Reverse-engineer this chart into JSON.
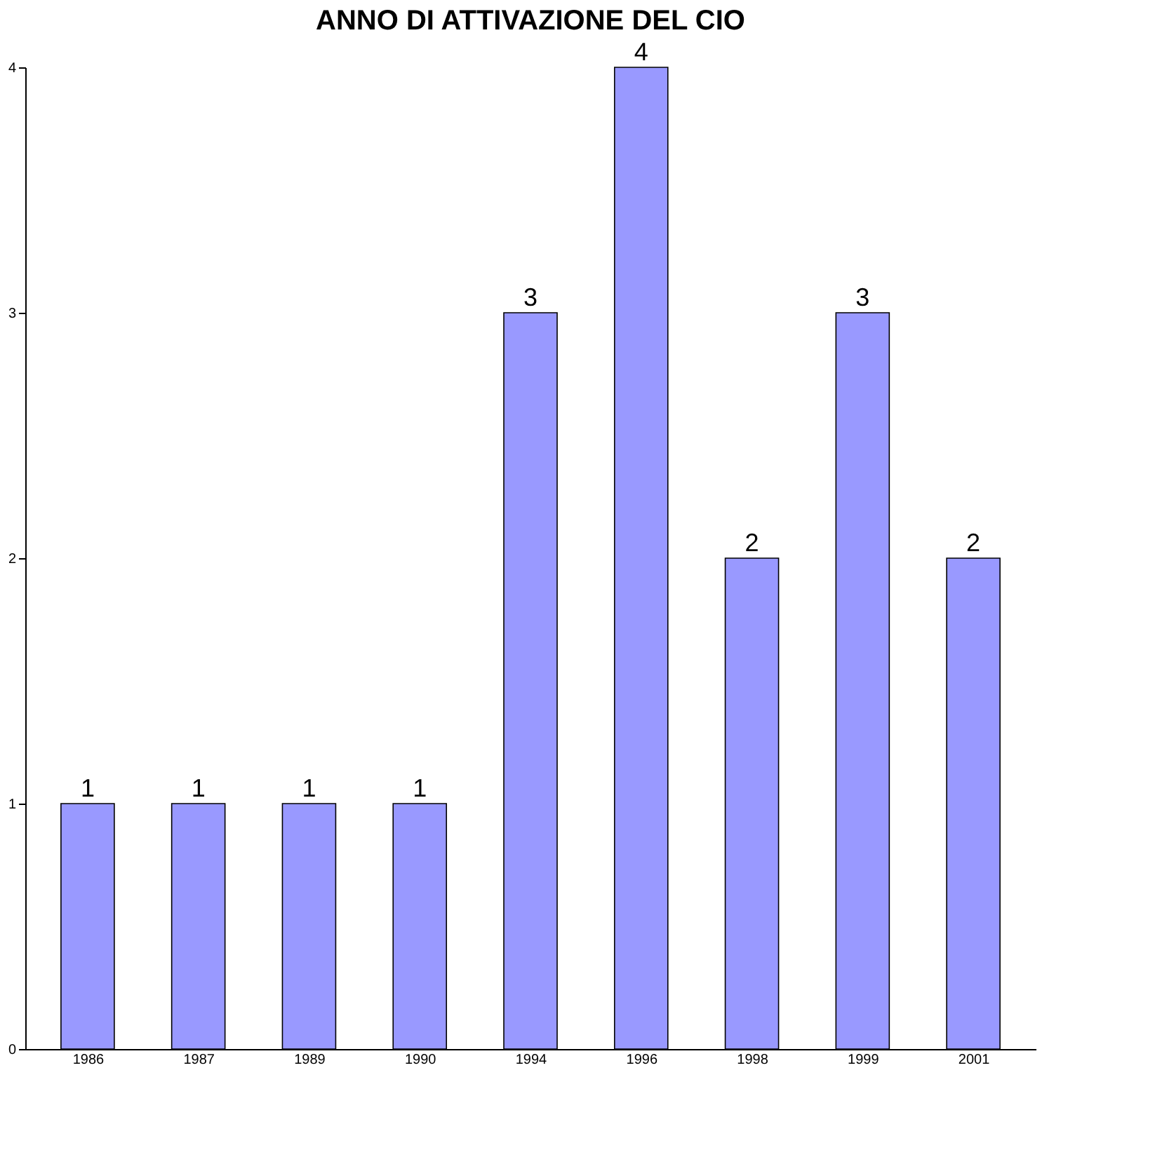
{
  "chart_data": {
    "type": "bar",
    "title": "ANNO DI ATTIVAZIONE DEL CIO",
    "categories": [
      "1986",
      "1987",
      "1989",
      "1990",
      "1994",
      "1996",
      "1998",
      "1999",
      "2001"
    ],
    "values": [
      1,
      1,
      1,
      1,
      3,
      4,
      2,
      3,
      2
    ],
    "color": "#9999ff",
    "ylim": [
      0,
      4
    ],
    "yticks": [
      0,
      1,
      2,
      3,
      4
    ],
    "grid": false,
    "data_labels": true
  }
}
